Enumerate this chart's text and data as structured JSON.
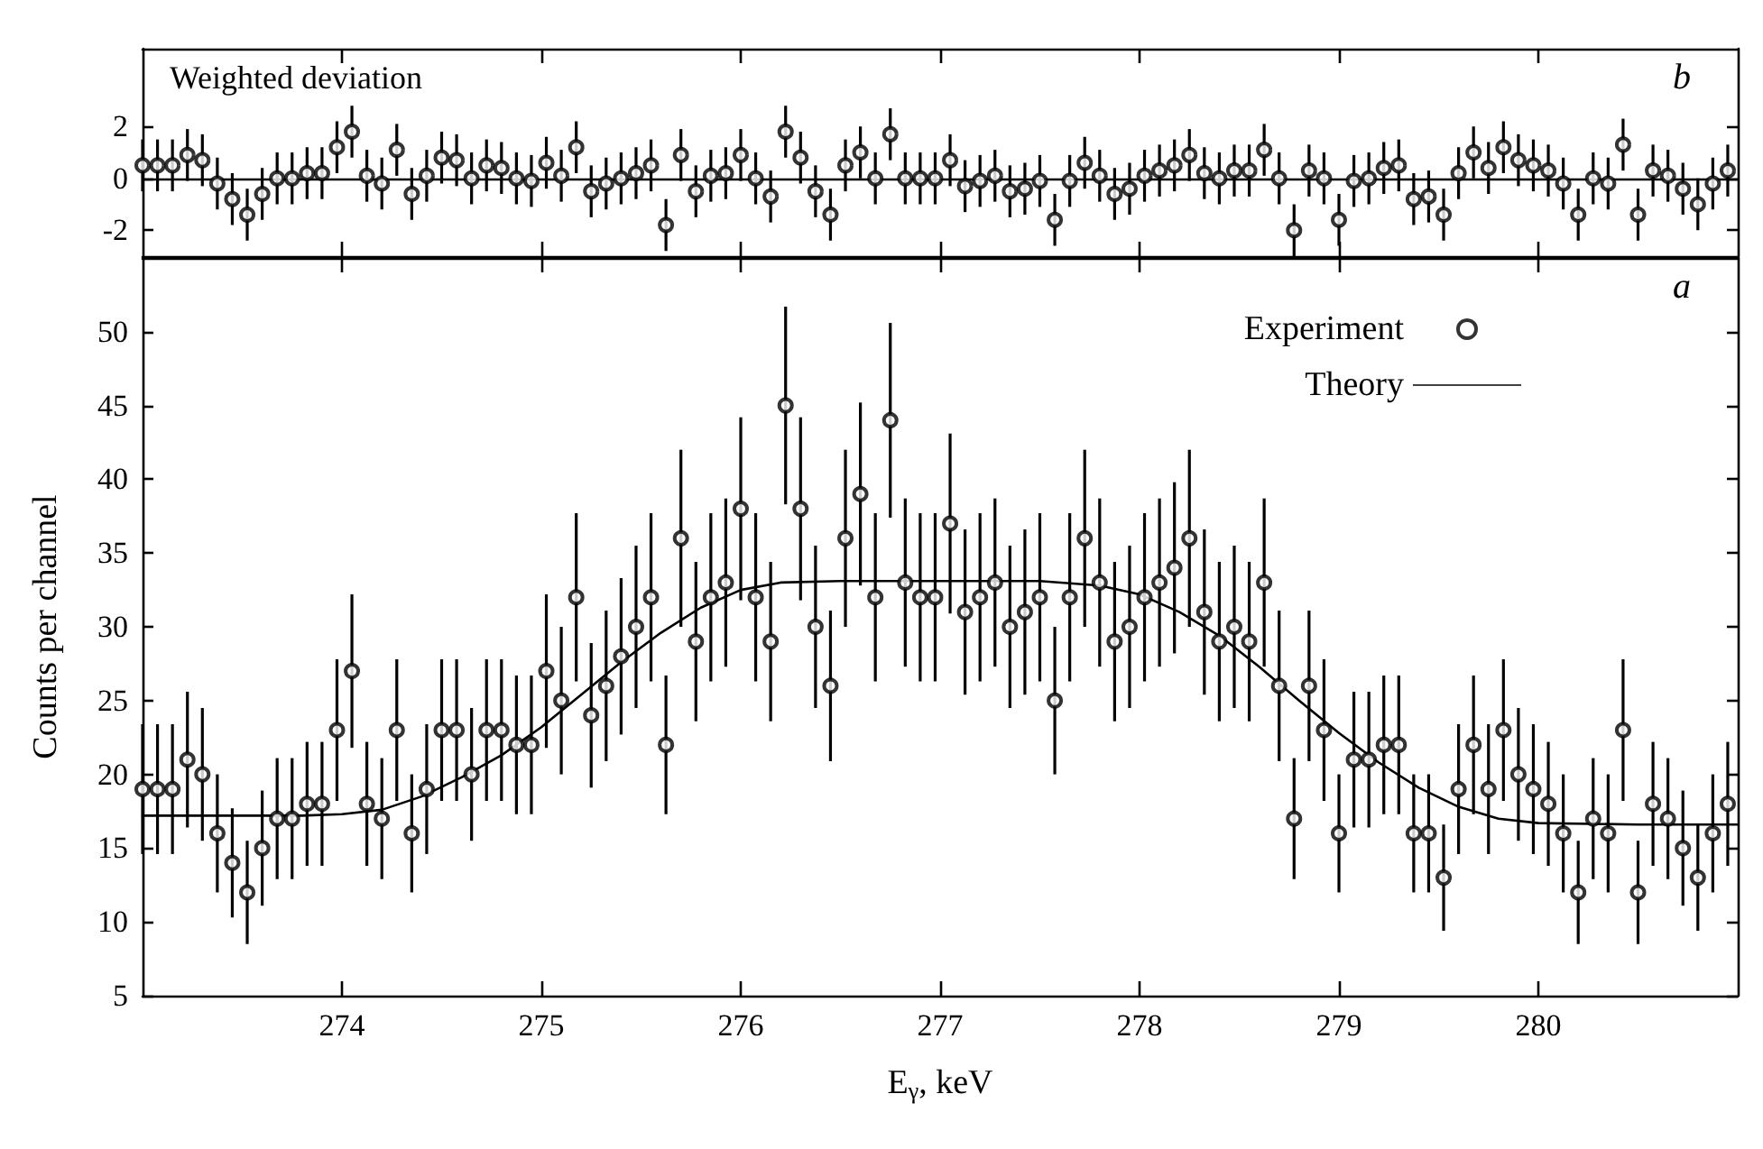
{
  "chart_data": [
    {
      "type": "scatter",
      "title": "Weighted deviation",
      "annotations": [
        "b"
      ],
      "tick_labels": "y",
      "xlim": [
        273,
        281
      ],
      "xticks": [
        274,
        275,
        276,
        277,
        278,
        279,
        280
      ],
      "ylim": [
        -3,
        5
      ],
      "yticks": [
        -2,
        0,
        2
      ],
      "ref_lines": [
        {
          "axis": "y",
          "value": 0,
          "color": "#000000"
        }
      ],
      "x": [
        273,
        273.075,
        273.15,
        273.225,
        273.3,
        273.375,
        273.45,
        273.525,
        273.6,
        273.675,
        273.75,
        273.825,
        273.9,
        273.975,
        274.05,
        274.125,
        274.2,
        274.275,
        274.35,
        274.425,
        274.5,
        274.575,
        274.65,
        274.725,
        274.8,
        274.875,
        274.95,
        275.025,
        275.1,
        275.175,
        275.25,
        275.325,
        275.4,
        275.475,
        275.55,
        275.625,
        275.7,
        275.775,
        275.85,
        275.925,
        276,
        276.075,
        276.15,
        276.225,
        276.3,
        276.375,
        276.45,
        276.525,
        276.6,
        276.675,
        276.75,
        276.825,
        276.9,
        276.975,
        277.05,
        277.125,
        277.2,
        277.275,
        277.35,
        277.425,
        277.5,
        277.575,
        277.65,
        277.725,
        277.8,
        277.875,
        277.95,
        278.025,
        278.1,
        278.175,
        278.25,
        278.325,
        278.4,
        278.475,
        278.55,
        278.625,
        278.7,
        278.775,
        278.85,
        278.925,
        279,
        279.075,
        279.15,
        279.225,
        279.3,
        279.375,
        279.45,
        279.525,
        279.6,
        279.675,
        279.75,
        279.825,
        279.9,
        279.975,
        280.05,
        280.125,
        280.2,
        280.275,
        280.35,
        280.425,
        280.5,
        280.575,
        280.65,
        280.725,
        280.8,
        280.875,
        280.95
      ],
      "series": [
        {
          "color": "#000000",
          "marker": "circle",
          "values": [
            0.5,
            0.5,
            0.5,
            0.9,
            0.7,
            -0.2,
            -0.8,
            -1.4,
            -0.6,
            0,
            0,
            0.2,
            0.2,
            1.2,
            1.8,
            0.1,
            -0.2,
            1.1,
            -0.6,
            0.1,
            0.8,
            0.7,
            0,
            0.5,
            0.4,
            0,
            -0.1,
            0.6,
            0.1,
            1.2,
            -0.5,
            -0.2,
            0,
            0.2,
            0.5,
            -1.8,
            0.9,
            -0.5,
            0.1,
            0.2,
            0.9,
            0,
            -0.7,
            1.8,
            0.8,
            -0.5,
            -1.4,
            0.5,
            1.0,
            0,
            1.7,
            0,
            0,
            0,
            0.7,
            -0.3,
            -0.1,
            0.1,
            -0.5,
            -0.4,
            -0.1,
            -1.6,
            -0.1,
            0.6,
            0.1,
            -0.6,
            -0.4,
            0.1,
            0.3,
            0.5,
            0.9,
            0.2,
            0,
            0.3,
            0.3,
            1.1,
            0,
            -2.0,
            0.3,
            0,
            -1.6,
            -0.1,
            0,
            0.4,
            0.5,
            -0.8,
            -0.7,
            -1.4,
            0.2,
            1.0,
            0.4,
            1.2,
            0.7,
            0.5,
            0.3,
            -0.2,
            -1.4,
            0,
            -0.2,
            1.3,
            -1.4,
            0.3,
            0.1,
            -0.4,
            -1.0,
            -0.2,
            0.3
          ],
          "errors": [
            1,
            1,
            1,
            1,
            1,
            1,
            1,
            1,
            1,
            1,
            1,
            1,
            1,
            1,
            1,
            1,
            1,
            1,
            1,
            1,
            1,
            1,
            1,
            1,
            1,
            1,
            1,
            1,
            1,
            1,
            1,
            1,
            1,
            1,
            1,
            1,
            1,
            1,
            1,
            1,
            1,
            1,
            1,
            1,
            1,
            1,
            1,
            1,
            1,
            1,
            1,
            1,
            1,
            1,
            1,
            1,
            1,
            1,
            1,
            1,
            1,
            1,
            1,
            1,
            1,
            1,
            1,
            1,
            1,
            1,
            1,
            1,
            1,
            1,
            1,
            1,
            1,
            1,
            1,
            1,
            1,
            1,
            1,
            1,
            1,
            1,
            1,
            1,
            1,
            1,
            1,
            1,
            1,
            1,
            1,
            1,
            1,
            1,
            1,
            1,
            1,
            1,
            1,
            1,
            1,
            1,
            1
          ]
        }
      ]
    },
    {
      "type": "scatter",
      "xlabel": "E$_{γ}$, keV",
      "ylabel": "Counts per channel",
      "annotations": [
        "a"
      ],
      "legend": "top right",
      "xlim": [
        273,
        281
      ],
      "xticks": [
        274,
        275,
        276,
        277,
        278,
        279,
        280
      ],
      "ylim": [
        5,
        55
      ],
      "yticks": [
        5,
        10,
        15,
        20,
        25,
        30,
        35,
        40,
        45,
        50
      ],
      "x": [
        273,
        273.075,
        273.15,
        273.225,
        273.3,
        273.375,
        273.45,
        273.525,
        273.6,
        273.675,
        273.75,
        273.825,
        273.9,
        273.975,
        274.05,
        274.125,
        274.2,
        274.275,
        274.35,
        274.425,
        274.5,
        274.575,
        274.65,
        274.725,
        274.8,
        274.875,
        274.95,
        275.025,
        275.1,
        275.175,
        275.25,
        275.325,
        275.4,
        275.475,
        275.55,
        275.625,
        275.7,
        275.775,
        275.85,
        275.925,
        276,
        276.075,
        276.15,
        276.225,
        276.3,
        276.375,
        276.45,
        276.525,
        276.6,
        276.675,
        276.75,
        276.825,
        276.9,
        276.975,
        277.05,
        277.125,
        277.2,
        277.275,
        277.35,
        277.425,
        277.5,
        277.575,
        277.65,
        277.725,
        277.8,
        277.875,
        277.95,
        278.025,
        278.1,
        278.175,
        278.25,
        278.325,
        278.4,
        278.475,
        278.55,
        278.625,
        278.7,
        278.775,
        278.85,
        278.925,
        279,
        279.075,
        279.15,
        279.225,
        279.3,
        279.375,
        279.45,
        279.525,
        279.6,
        279.675,
        279.75,
        279.825,
        279.9,
        279.975,
        280.05,
        280.125,
        280.2,
        280.275,
        280.35,
        280.425,
        280.5,
        280.575,
        280.65,
        280.725,
        280.8,
        280.875,
        280.95
      ],
      "series": [
        {
          "name": "Experiment",
          "color": "#000000",
          "marker": "circle",
          "values": [
            19,
            19,
            19,
            21,
            20,
            16,
            14,
            12,
            15,
            17,
            17,
            18,
            18,
            23,
            27,
            18,
            17,
            23,
            16,
            19,
            23,
            23,
            20,
            23,
            23,
            22,
            22,
            27,
            25,
            32,
            24,
            26,
            28,
            30,
            32,
            22,
            36,
            29,
            32,
            33,
            38,
            32,
            29,
            45,
            38,
            30,
            26,
            36,
            39,
            32,
            44,
            33,
            32,
            32,
            37,
            31,
            32,
            33,
            30,
            31,
            32,
            25,
            32,
            36,
            33,
            29,
            30,
            32,
            33,
            34,
            36,
            31,
            29,
            30,
            29,
            33,
            26,
            17,
            26,
            23,
            16,
            21,
            21,
            22,
            22,
            16,
            16,
            13,
            19,
            22,
            19,
            23,
            20,
            19,
            18,
            16,
            12,
            17,
            16,
            23,
            12,
            18,
            17,
            15,
            13,
            16,
            18
          ],
          "errors": [
            4.4,
            4.4,
            4.4,
            4.6,
            4.5,
            4,
            3.7,
            3.5,
            3.9,
            4.1,
            4.1,
            4.2,
            4.2,
            4.8,
            5.2,
            4.2,
            4.1,
            4.8,
            4,
            4.4,
            4.8,
            4.8,
            4.5,
            4.8,
            4.8,
            4.7,
            4.7,
            5.2,
            5,
            5.7,
            4.9,
            5.1,
            5.3,
            5.5,
            5.7,
            4.7,
            6,
            5.4,
            5.7,
            5.7,
            6.2,
            5.7,
            5.4,
            6.7,
            6.2,
            5.5,
            5.1,
            6,
            6.2,
            5.7,
            6.6,
            5.7,
            5.7,
            5.7,
            6.1,
            5.6,
            5.7,
            5.7,
            5.5,
            5.6,
            5.7,
            5,
            5.7,
            6,
            5.7,
            5.4,
            5.5,
            5.7,
            5.7,
            5.8,
            6,
            5.6,
            5.4,
            5.5,
            5.4,
            5.7,
            5.1,
            4.1,
            5.1,
            4.8,
            4,
            4.6,
            4.6,
            4.7,
            4.7,
            4,
            4,
            3.6,
            4.4,
            4.7,
            4.4,
            4.8,
            4.5,
            4.4,
            4.2,
            4,
            3.5,
            4.1,
            4,
            4.8,
            3.5,
            4.2,
            4.1,
            3.9,
            3.6,
            4,
            4.2
          ]
        },
        {
          "name": "Theory",
          "type": "line",
          "color": "#000000",
          "line_style": "solid",
          "x": [
            273,
            273.5,
            273.8,
            274,
            274.2,
            274.4,
            274.6,
            274.8,
            275,
            275.2,
            275.4,
            275.6,
            275.8,
            276,
            276.2,
            276.5,
            277,
            277.5,
            277.8,
            278,
            278.2,
            278.4,
            278.6,
            278.8,
            279,
            279.2,
            279.4,
            279.6,
            279.8,
            280,
            280.5,
            281
          ],
          "values": [
            17.2,
            17.2,
            17.2,
            17.3,
            17.6,
            18.5,
            19.8,
            21.3,
            23.2,
            25.4,
            27.6,
            29.6,
            31.3,
            32.5,
            33,
            33.1,
            33.1,
            33.1,
            32.8,
            32.2,
            31,
            29.4,
            27.3,
            25,
            22.8,
            20.8,
            19.1,
            17.8,
            17,
            16.7,
            16.6,
            16.6
          ]
        }
      ]
    }
  ]
}
